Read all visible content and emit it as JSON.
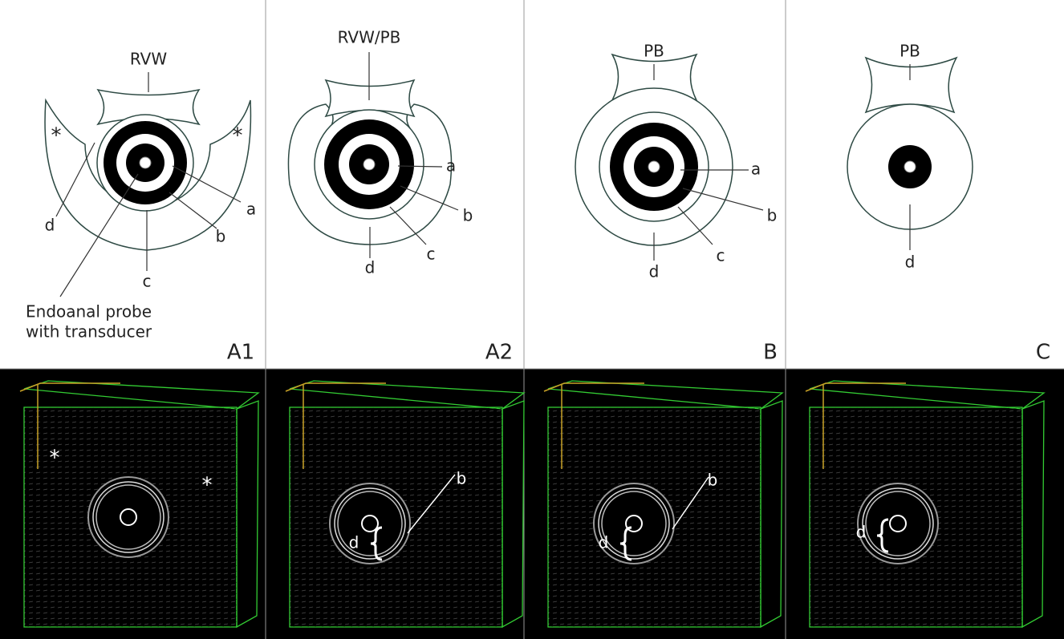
{
  "panels": [
    {
      "label": "A1",
      "top": {
        "title": "RVW",
        "letters": [
          "a",
          "b",
          "c",
          "d"
        ],
        "asterisks": [
          "*",
          "*"
        ],
        "note": [
          "Endoanal probe",
          "with transducer"
        ]
      },
      "image": {
        "labels": [
          "*",
          "*"
        ]
      }
    },
    {
      "label": "A2",
      "top": {
        "title": "RVW/PB",
        "letters": [
          "a",
          "b",
          "c",
          "d"
        ]
      },
      "image": {
        "labels": [
          "d",
          "b"
        ]
      }
    },
    {
      "label": "B",
      "top": {
        "title": "PB",
        "letters": [
          "a",
          "b",
          "c",
          "d"
        ]
      },
      "image": {
        "labels": [
          "d",
          "b"
        ]
      }
    },
    {
      "label": "C",
      "top": {
        "title": "PB",
        "letters": [
          "d"
        ]
      },
      "image": {
        "labels": [
          "d"
        ]
      }
    }
  ]
}
